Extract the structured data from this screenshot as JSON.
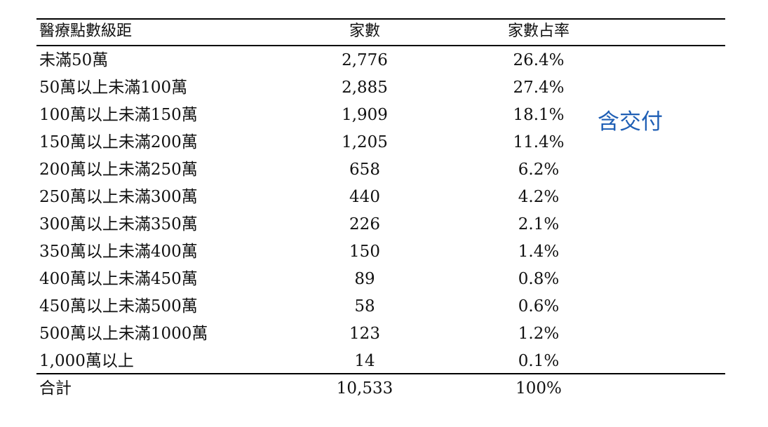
{
  "table": {
    "headers": {
      "range": "醫療點數級距",
      "count": "家數",
      "share": "家數占率"
    },
    "rows": [
      {
        "range": "未滿50萬",
        "count": "2,776",
        "share": "26.4%"
      },
      {
        "range": "50萬以上未滿100萬",
        "count": "2,885",
        "share": "27.4%"
      },
      {
        "range": "100萬以上未滿150萬",
        "count": "1,909",
        "share": "18.1%"
      },
      {
        "range": "150萬以上未滿200萬",
        "count": "1,205",
        "share": "11.4%"
      },
      {
        "range": "200萬以上未滿250萬",
        "count": "658",
        "share": "6.2%"
      },
      {
        "range": "250萬以上未滿300萬",
        "count": "440",
        "share": "4.2%"
      },
      {
        "range": "300萬以上未滿350萬",
        "count": "226",
        "share": "2.1%"
      },
      {
        "range": "350萬以上未滿400萬",
        "count": "150",
        "share": "1.4%"
      },
      {
        "range": "400萬以上未滿450萬",
        "count": "89",
        "share": "0.8%"
      },
      {
        "range": "450萬以上未滿500萬",
        "count": "58",
        "share": "0.6%"
      },
      {
        "range": "500萬以上未滿1000萬",
        "count": "123",
        "share": "1.2%"
      },
      {
        "range": "1,000萬以上",
        "count": "14",
        "share": "0.1%"
      }
    ],
    "total": {
      "range": "合計",
      "count": "10,533",
      "share": "100%"
    }
  },
  "note": {
    "text": "含交付",
    "color": "#1f5fb5"
  }
}
